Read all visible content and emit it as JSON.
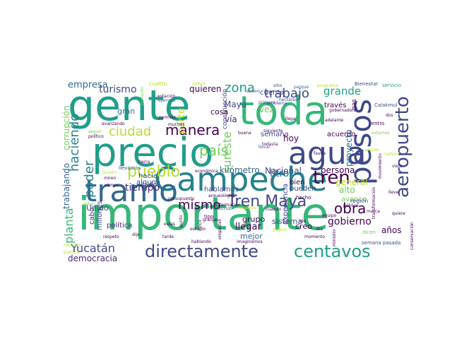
{
  "title": "",
  "palette": {
    "c1": "#440154",
    "c2": "#482878",
    "c3": "#3e4989",
    "c4": "#31688e",
    "c5": "#26828e",
    "c6": "#1f9e89",
    "c7": "#35b779",
    "c8": "#6ece58",
    "c9": "#b5de2b",
    "c10": "#fde725"
  },
  "words": [
    {
      "text": "importante",
      "color": "#35b779"
    },
    {
      "text": "gente",
      "color": "#1f9e89"
    },
    {
      "text": "precio",
      "color": "#1f9e89"
    },
    {
      "text": "toda",
      "color": "#35b779"
    },
    {
      "text": "Campeche",
      "color": "#26828e"
    },
    {
      "text": "tramo",
      "color": "#31688e"
    },
    {
      "text": "pesos",
      "color": "#3e4989"
    },
    {
      "text": "agua",
      "color": "#3e4989"
    },
    {
      "text": "directamente",
      "color": "#3e4989"
    },
    {
      "text": "centavos",
      "color": "#1f9e89"
    },
    {
      "text": "aeropuerto",
      "color": "#3e4989"
    },
    {
      "text": "Tren Maya",
      "color": "#3e4989"
    },
    {
      "text": "tren",
      "color": "#440154"
    },
    {
      "text": "pueblo",
      "color": "#b5de2b"
    },
    {
      "text": "país",
      "color": "#6ece58"
    },
    {
      "text": "ciudad",
      "color": "#b5de2b"
    },
    {
      "text": "manera",
      "color": "#440154"
    },
    {
      "text": "trabajo",
      "color": "#3e4989"
    },
    {
      "text": "zona",
      "color": "#1f9e89"
    },
    {
      "text": "obra",
      "color": "#440154"
    },
    {
      "text": "Yucatán",
      "color": "#3e4989"
    },
    {
      "text": "mismo",
      "color": "#440154"
    },
    {
      "text": "haciendo",
      "color": "#26828e"
    },
    {
      "text": "poder",
      "color": "#26828e"
    },
    {
      "text": "planta",
      "color": "#35b779"
    },
    {
      "text": "turismo",
      "color": "#3e4989"
    },
    {
      "text": "empresa",
      "color": "#31688e"
    },
    {
      "text": "grande",
      "color": "#1f9e89"
    },
    {
      "text": "gobierno",
      "color": "#440154"
    },
    {
      "text": "litro",
      "color": "#31688e"
    },
    {
      "text": "sureste",
      "color": "#6ece58"
    },
    {
      "text": "democracia",
      "color": "#482878"
    },
    {
      "text": "tiempo",
      "color": "#482878"
    },
    {
      "text": "parte",
      "color": "#b5de2b"
    },
    {
      "text": "quieren",
      "color": "#440154"
    },
    {
      "text": "corrupción",
      "color": "#6ece58"
    },
    {
      "text": "trabajando",
      "color": "#31688e"
    },
    {
      "text": "hoy",
      "color": "#440154"
    },
    {
      "text": "Nacional",
      "color": "#3e4989"
    },
    {
      "text": "kilómetro",
      "color": "#31688e"
    },
    {
      "text": "Maya",
      "color": "#3e4989"
    },
    {
      "text": "vía",
      "color": "#482878"
    },
    {
      "text": "cosa",
      "color": "#440154"
    },
    {
      "text": "gran",
      "color": "#31688e"
    },
    {
      "text": "persona",
      "color": "#440154"
    },
    {
      "text": "general",
      "color": "#b5de2b"
    },
    {
      "text": "alto",
      "color": "#6ece58"
    },
    {
      "text": "avance",
      "color": "#6ece58"
    },
    {
      "text": "proyecto",
      "color": "#31688e"
    },
    {
      "text": "años",
      "color": "#440154"
    },
    {
      "text": "llegar",
      "color": "#440154"
    },
    {
      "text": "grupo",
      "color": "#440154"
    },
    {
      "text": "mejor",
      "color": "#31688e"
    },
    {
      "text": "experiencia",
      "color": "#3e4989"
    },
    {
      "text": "creo",
      "color": "#440154"
    },
    {
      "text": "sistema",
      "color": "#3e4989"
    },
    {
      "text": "pueden",
      "color": "#3e4989"
    },
    {
      "text": "bien",
      "color": "#440154"
    },
    {
      "text": "cuenta",
      "color": "#3e4989"
    },
    {
      "text": "vez",
      "color": "#6ece58"
    },
    {
      "text": "semana",
      "color": "#3e4989"
    },
    {
      "text": "acuerdo",
      "color": "#440154"
    },
    {
      "text": "través",
      "color": "#440154"
    },
    {
      "text": "Unido",
      "color": "#3e4989"
    },
    {
      "text": "cabo",
      "color": "#482878"
    },
    {
      "text": "millones",
      "color": "#3e4989"
    },
    {
      "text": "política",
      "color": "#482878"
    },
    {
      "text": "lado",
      "color": "#3e4989"
    },
    {
      "text": "hacia",
      "color": "#3e4989"
    },
    {
      "text": "alguna",
      "color": "#3e4989"
    },
    {
      "text": "hablamos",
      "color": "#3e4989"
    },
    {
      "text": "construcción",
      "color": "#3e4989"
    },
    {
      "text": "cuatro",
      "color": "#b5de2b"
    },
    {
      "text": "llevamos",
      "color": "#3e4989"
    },
    {
      "text": "tipo",
      "color": "#440154"
    },
    {
      "text": "semana pasada",
      "color": "#3e4989"
    },
    {
      "text": "región",
      "color": "#3e4989"
    },
    {
      "text": "servicio",
      "color": "#1f9e89"
    },
    {
      "text": "Bienestar",
      "color": "#3e4989"
    },
    {
      "text": "sitio",
      "color": "#3e4989"
    },
    {
      "text": "parque",
      "color": "#31688e"
    },
    {
      "text": "programa",
      "color": "#b5de2b"
    },
    {
      "text": "Calakmul",
      "color": "#3e4989"
    },
    {
      "text": "Veracruz",
      "color": "#31688e"
    },
    {
      "text": "dicen",
      "color": "#6ece58"
    },
    {
      "text": "estudio",
      "color": "#440154"
    },
    {
      "text": "hecho",
      "color": "#440154"
    },
    {
      "text": "público",
      "color": "#440154"
    },
    {
      "text": "llevar",
      "color": "#31688e"
    },
    {
      "text": "fauna",
      "color": "#440154"
    },
    {
      "text": "gas",
      "color": "#440154"
    },
    {
      "text": "granjas",
      "color": "#440154"
    },
    {
      "text": "arqueológico",
      "color": "#440154"
    },
    {
      "text": "presupuesto",
      "color": "#440154"
    },
    {
      "text": "Jalisco",
      "color": "#b5de2b"
    },
    {
      "text": "tenemos",
      "color": "#b5de2b"
    },
    {
      "text": "nuevo",
      "color": "#b5de2b"
    },
    {
      "text": "primera",
      "color": "#3e4989"
    },
    {
      "text": "problema",
      "color": "#3e4989"
    },
    {
      "text": "hectárea",
      "color": "#3e4989"
    },
    {
      "text": "gobernadora",
      "color": "#440154"
    },
    {
      "text": "siguiente",
      "color": "#440154"
    },
    {
      "text": "adelante",
      "color": "#440154"
    },
    {
      "text": "centro",
      "color": "#440154"
    },
    {
      "text": "buena",
      "color": "#440154"
    },
    {
      "text": "llega",
      "color": "#440154"
    },
    {
      "text": "dinero",
      "color": "#3e4989"
    },
    {
      "text": "seguir",
      "color": "#6ece58"
    },
    {
      "text": "ejemplo",
      "color": "#31688e"
    },
    {
      "text": "permiso",
      "color": "#440154"
    },
    {
      "text": "muchos",
      "color": "#440154"
    },
    {
      "text": "estación",
      "color": "#440154"
    },
    {
      "text": "producto",
      "color": "#6ece58"
    },
    {
      "text": "avanzando",
      "color": "#440154"
    },
    {
      "text": "político",
      "color": "#440154"
    },
    {
      "text": "económica",
      "color": "#440154"
    },
    {
      "text": "Quiero",
      "color": "#b5de2b"
    },
    {
      "text": "miren",
      "color": "#440154"
    },
    {
      "text": "debe",
      "color": "#6ece58"
    },
    {
      "text": "margen",
      "color": "#b5de2b"
    },
    {
      "text": "pública",
      "color": "#b5de2b"
    },
    {
      "text": "información",
      "color": "#440154"
    },
    {
      "text": "hablando",
      "color": "#440154"
    },
    {
      "text": "imaginemos",
      "color": "#440154"
    },
    {
      "text": "ministro",
      "color": "#440154"
    },
    {
      "text": "conservación",
      "color": "#440154"
    },
    {
      "text": "transformación",
      "color": "#440154"
    },
    {
      "text": "movimiento",
      "color": "#440154"
    },
    {
      "text": "estamos",
      "color": "#6ece58"
    },
    {
      "text": "camino",
      "color": "#b5de2b"
    },
    {
      "text": "todavía",
      "color": "#440154"
    },
    {
      "text": "ido",
      "color": "#440154"
    },
    {
      "text": "iba",
      "color": "#440154"
    },
    {
      "text": "punto",
      "color": "#440154"
    },
    {
      "text": "cinco",
      "color": "#440154"
    },
    {
      "text": "empiezan",
      "color": "#440154"
    },
    {
      "text": "piezas",
      "color": "#b5de2b"
    },
    {
      "text": "estas",
      "color": "#440154"
    },
    {
      "text": "tarde",
      "color": "#440154"
    },
    {
      "text": "cuando",
      "color": "#440154"
    },
    {
      "text": "visto",
      "color": "#440154"
    },
    {
      "text": "marca",
      "color": "#440154"
    },
    {
      "text": "tierra",
      "color": "#440154"
    },
    {
      "text": "vamos",
      "color": "#440154"
    },
    {
      "text": "respeto",
      "color": "#440154"
    },
    {
      "text": "dije",
      "color": "#440154"
    },
    {
      "text": "momento",
      "color": "#440154"
    },
    {
      "text": "equipo",
      "color": "#440154"
    },
    {
      "text": "quiere",
      "color": "#440154"
    },
    {
      "text": "lleve",
      "color": "#440154"
    },
    {
      "text": "dos",
      "color": "#440154"
    }
  ]
}
